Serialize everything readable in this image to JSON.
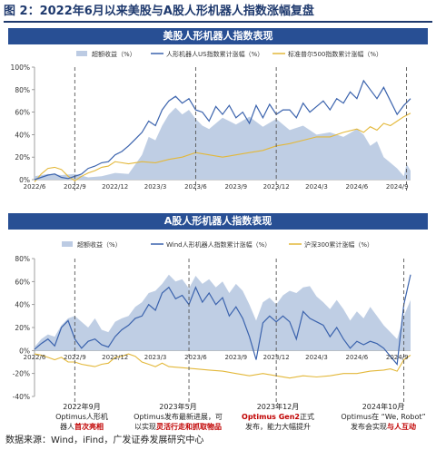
{
  "figure_title": "图 2：2022年6月以来美股与A股人形机器人指数涨幅复盘",
  "source": "数据来源：Wind，iFind，广发证券发展研究中心",
  "colors": {
    "band": "#284f94",
    "excess": "#bccbe3",
    "robot": "#3b63ad",
    "benchmark": "#e3b83a",
    "vline": "#555555"
  },
  "annotations": [
    {
      "date": "2022年9月",
      "line1": "Optimus人形机",
      "line2a": "器人",
      "line2b": "首次亮相"
    },
    {
      "date": "2023年5月",
      "line1": "Optimus发布最新进展，可",
      "line2a": "以实现",
      "line2b": "灵活行走和抓取物品"
    },
    {
      "date": "2023年12月",
      "line1_red": "Optimus Gen2",
      "line1_rest": "正式",
      "line2": "发布，能力大幅提升"
    },
    {
      "date": "2024年10月",
      "line1": "Optimus在 “We, Robot”",
      "line2a": "发布会实现",
      "line2b": "与人互动"
    }
  ],
  "chart_data": [
    {
      "type": "line",
      "title": "美股人形机器人指数表现",
      "legend": [
        "超额收益（%）",
        "人形机器人US指数累计涨幅（%）",
        "标准普尔500指数累计涨幅（%）"
      ],
      "legend_placement": "top",
      "x_ticks": [
        "2022/6",
        "2022/9",
        "2022/12",
        "2023/3",
        "2023/6",
        "2023/9",
        "2023/12",
        "2024/3",
        "2024/6",
        "2024/9"
      ],
      "ylim": [
        0,
        100
      ],
      "y_ticks": [
        0,
        20,
        40,
        60,
        80,
        100
      ],
      "y_tick_labels": [
        "0%",
        "20%",
        "40%",
        "60%",
        "80%",
        "100%"
      ],
      "x_range": [
        0,
        28
      ],
      "event_lines_x": [
        3,
        12,
        18,
        27.7
      ],
      "series": [
        {
          "name": "超额收益（%）",
          "kind": "area",
          "x": [
            0,
            1,
            2,
            3,
            4,
            5,
            6,
            7,
            8,
            8.5,
            9,
            9.5,
            10,
            10.5,
            11,
            11.5,
            12,
            12.5,
            13,
            14,
            15,
            16,
            17,
            18,
            19,
            20,
            21,
            22,
            23,
            24,
            24.5,
            25,
            25.5,
            26,
            26.5,
            27,
            27.5,
            27.7,
            28
          ],
          "values": [
            3,
            5,
            4,
            5,
            2,
            3,
            6,
            5,
            22,
            38,
            35,
            48,
            58,
            64,
            58,
            62,
            54,
            48,
            45,
            55,
            49,
            56,
            47,
            54,
            44,
            48,
            40,
            42,
            38,
            45,
            40,
            30,
            34,
            20,
            15,
            10,
            3,
            14,
            8
          ]
        },
        {
          "name": "人形机器人US指数累计涨幅（%）",
          "kind": "line",
          "x": [
            0,
            0.5,
            1,
            1.5,
            2,
            2.5,
            3,
            3.5,
            4,
            4.5,
            5,
            5.5,
            6,
            6.5,
            7,
            7.5,
            8,
            8.5,
            9,
            9.5,
            10,
            10.5,
            11,
            11.5,
            12,
            12.5,
            13,
            13.5,
            14,
            14.5,
            15,
            15.5,
            16,
            16.5,
            17,
            17.5,
            18,
            18.5,
            19,
            19.5,
            20,
            20.5,
            21,
            21.5,
            22,
            22.5,
            23,
            23.5,
            24,
            24.5,
            25,
            25.5,
            26,
            26.5,
            27,
            27.5,
            28
          ],
          "values": [
            0,
            2,
            4,
            5,
            2,
            1,
            3,
            5,
            10,
            12,
            15,
            16,
            22,
            25,
            30,
            36,
            42,
            52,
            48,
            62,
            70,
            74,
            68,
            72,
            62,
            60,
            52,
            65,
            58,
            66,
            55,
            60,
            50,
            66,
            55,
            67,
            58,
            62,
            62,
            55,
            68,
            60,
            65,
            70,
            62,
            72,
            68,
            78,
            72,
            88,
            80,
            72,
            82,
            70,
            58,
            66,
            72
          ]
        },
        {
          "name": "标准普尔500指数累计涨幅（%）",
          "kind": "line",
          "x": [
            0,
            0.5,
            1,
            1.5,
            2,
            2.5,
            3,
            3.5,
            4,
            4.5,
            5,
            5.5,
            6,
            7,
            8,
            9,
            10,
            11,
            12,
            13,
            14,
            15,
            16,
            17,
            18,
            19,
            20,
            21,
            22,
            23,
            24,
            24.5,
            25,
            25.5,
            26,
            26.5,
            27,
            27.5,
            28
          ],
          "values": [
            -2,
            5,
            10,
            11,
            9,
            3,
            -1,
            3,
            6,
            8,
            11,
            12,
            16,
            14,
            16,
            15,
            18,
            20,
            24,
            22,
            20,
            22,
            24,
            26,
            30,
            32,
            35,
            38,
            38,
            42,
            45,
            42,
            47,
            44,
            50,
            48,
            52,
            56,
            59
          ]
        }
      ]
    },
    {
      "type": "line",
      "title": "A股人形机器人指数表现",
      "legend": [
        "超额收益（%）",
        "Wind人形机器人指数累计涨幅（%）",
        "沪深300累计涨幅（%）"
      ],
      "legend_placement": "top",
      "x_ticks": [
        "2022/6",
        "2022/9",
        "2022/12",
        "2023/3",
        "2023/6",
        "2023/9",
        "2023/12",
        "2024/3",
        "2024/6",
        "2024/9"
      ],
      "ylim": [
        -40,
        80
      ],
      "y_ticks": [
        -40,
        -20,
        0,
        20,
        40,
        60,
        80
      ],
      "y_tick_labels": [
        "-40%",
        "-20%",
        "0%",
        "20%",
        "40%",
        "60%",
        "80%"
      ],
      "x_range": [
        0,
        28
      ],
      "event_lines_x": [
        3,
        11.5,
        18,
        27.5
      ],
      "series": [
        {
          "name": "超额收益（%）",
          "kind": "area",
          "x": [
            0,
            0.5,
            1,
            1.5,
            2,
            2.5,
            3,
            3.5,
            4,
            4.5,
            5,
            5.5,
            6,
            6.5,
            7,
            7.5,
            8,
            8.5,
            9,
            9.5,
            10,
            10.5,
            11,
            11.5,
            12,
            12.5,
            13,
            13.5,
            14,
            14.5,
            15,
            15.5,
            16,
            16.5,
            17,
            17.5,
            18,
            18.5,
            19,
            19.5,
            20,
            20.5,
            21,
            21.5,
            22,
            22.5,
            23,
            23.5,
            24,
            24.5,
            25,
            25.5,
            26,
            26.5,
            27,
            27.5,
            28
          ],
          "values": [
            3,
            10,
            14,
            12,
            22,
            28,
            30,
            25,
            20,
            28,
            18,
            16,
            25,
            28,
            30,
            38,
            42,
            50,
            52,
            58,
            66,
            60,
            62,
            54,
            65,
            58,
            62,
            55,
            60,
            50,
            58,
            52,
            40,
            26,
            42,
            46,
            40,
            48,
            52,
            50,
            55,
            56,
            47,
            42,
            36,
            44,
            36,
            26,
            34,
            28,
            38,
            30,
            22,
            16,
            10,
            30,
            44
          ]
        },
        {
          "name": "Wind人形机器人指数累计涨幅（%）",
          "kind": "line",
          "x": [
            0,
            0.5,
            1,
            1.5,
            2,
            2.5,
            3,
            3.5,
            4,
            4.5,
            5,
            5.5,
            6,
            6.5,
            7,
            7.5,
            8,
            8.5,
            9,
            9.5,
            10,
            10.5,
            11,
            11.5,
            12,
            12.5,
            13,
            13.5,
            14,
            14.5,
            15,
            15.5,
            16,
            16.5,
            17,
            17.5,
            18,
            18.5,
            19,
            19.5,
            20,
            20.5,
            21,
            21.5,
            22,
            22.5,
            23,
            23.5,
            24,
            24.5,
            25,
            25.5,
            26,
            26.5,
            27,
            27.5,
            28
          ],
          "values": [
            1,
            6,
            10,
            4,
            20,
            26,
            10,
            2,
            8,
            10,
            5,
            3,
            12,
            18,
            22,
            28,
            30,
            40,
            35,
            50,
            55,
            45,
            48,
            40,
            55,
            42,
            50,
            40,
            46,
            30,
            38,
            28,
            12,
            -8,
            24,
            30,
            25,
            30,
            25,
            10,
            34,
            28,
            25,
            22,
            12,
            20,
            10,
            2,
            8,
            5,
            8,
            6,
            2,
            -5,
            -12,
            40,
            66
          ]
        },
        {
          "name": "沪深300累计涨幅（%）",
          "kind": "line",
          "x": [
            0,
            0.5,
            1,
            1.5,
            2,
            2.5,
            3,
            3.5,
            4,
            4.5,
            5,
            5.5,
            6,
            6.5,
            7,
            7.5,
            8,
            8.5,
            9,
            9.5,
            10,
            11,
            12,
            13,
            14,
            15,
            16,
            17,
            18,
            19,
            20,
            21,
            22,
            23,
            24,
            25,
            26,
            26.5,
            27,
            27.5,
            28
          ],
          "values": [
            -3,
            -4,
            -6,
            -8,
            -6,
            -10,
            -10,
            -12,
            -13,
            -14,
            -12,
            -11,
            -6,
            -5,
            -3,
            -5,
            -10,
            -12,
            -14,
            -11,
            -14,
            -15,
            -16,
            -17,
            -18,
            -20,
            -22,
            -20,
            -22,
            -24,
            -22,
            -23,
            -22,
            -20,
            -20,
            -18,
            -17,
            -16,
            -18,
            -8,
            -4
          ]
        }
      ]
    }
  ]
}
